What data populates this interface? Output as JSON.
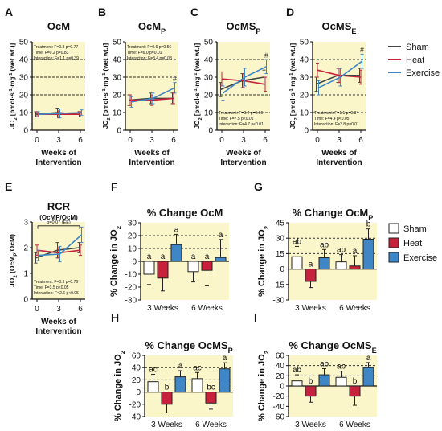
{
  "colors": {
    "plot_bg": "#fbf6c9",
    "sham": "#444444",
    "heat": "#c8213c",
    "exercise": "#3f86c6",
    "sham_fill": "#ffffff"
  },
  "legend_top": [
    "Sham",
    "Heat",
    "Exercise"
  ],
  "legend_bottom": [
    "Sham",
    "Heat",
    "Exercise"
  ],
  "chart_data": [
    {
      "panel": "A",
      "type": "line",
      "title": "OcM",
      "title_sub": "",
      "ylabel_parts": [
        "JO",
        "2",
        " [pmol·s",
        "-1",
        "·mg",
        "-1",
        " (wet wt.)]"
      ],
      "xlabel": "Weeks of Intervention",
      "xlabel_lines": [
        "Weeks of",
        "Intervention"
      ],
      "x": [
        0,
        3,
        6
      ],
      "xticks": [
        "0",
        "3",
        "6"
      ],
      "ylim": [
        0,
        50
      ],
      "yticks": [
        0,
        10,
        20,
        30,
        40,
        50
      ],
      "dashed_grid": [
        20,
        30,
        40
      ],
      "series": [
        {
          "name": "Sham",
          "values": [
            9,
            10,
            9
          ],
          "err": [
            1.5,
            2.5,
            1.5
          ]
        },
        {
          "name": "Heat",
          "values": [
            9,
            9,
            9
          ],
          "err": [
            1.5,
            2,
            1.5
          ]
        },
        {
          "name": "Exercise",
          "values": [
            9,
            9.5,
            10
          ],
          "err": [
            1.5,
            2.5,
            1.5
          ]
        }
      ],
      "stats": [
        "Treatment:  F=0.3   p=0.77",
        "Time:          F=0.2   p=0.83",
        "Interaction: F=1.1   p=0.39"
      ],
      "stats_pos": "top",
      "annotations": []
    },
    {
      "panel": "B",
      "type": "line",
      "title": "OcM",
      "title_sub": "P",
      "ylabel_parts": [
        "JO",
        "2",
        " [pmol·s",
        "-1",
        "·mg",
        "-1",
        " (wet wt.)]"
      ],
      "xlabel": "Weeks of Intervention",
      "xlabel_lines": [
        "Weeks of",
        "Intervention"
      ],
      "x": [
        0,
        3,
        6
      ],
      "xticks": [
        "0",
        "3",
        "6"
      ],
      "ylim": [
        0,
        50
      ],
      "yticks": [
        0,
        10,
        20,
        30,
        40,
        50
      ],
      "dashed_grid": [
        30,
        40
      ],
      "series": [
        {
          "name": "Sham",
          "values": [
            17,
            18,
            18
          ],
          "err": [
            3,
            3,
            3
          ]
        },
        {
          "name": "Heat",
          "values": [
            17,
            17,
            18
          ],
          "err": [
            3,
            3,
            3
          ]
        },
        {
          "name": "Exercise",
          "values": [
            16,
            18,
            24
          ],
          "err": [
            3,
            3,
            3
          ]
        }
      ],
      "stats": [
        "Treatment:  F=0.6   p=0.56",
        "Time:          F=6.0   p=0.01",
        "Interaction: F=3.4   p=0.03"
      ],
      "stats_pos": "top",
      "annotations": [
        {
          "text": "#",
          "series": "Exercise",
          "x": 6,
          "y": 28
        }
      ]
    },
    {
      "panel": "C",
      "type": "line",
      "title": "OcMS",
      "title_sub": "P",
      "ylabel_parts": [
        "JO",
        "2",
        " [pmol·s",
        "-1",
        "·mg",
        "-1",
        " (wet wt.)]"
      ],
      "xlabel": "Weeks of Intervention",
      "xlabel_lines": [
        "Weeks of",
        "Intervention"
      ],
      "x": [
        0,
        3,
        6
      ],
      "xticks": [
        "0",
        "3",
        "6"
      ],
      "ylim": [
        0,
        50
      ],
      "yticks": [
        0,
        10,
        20,
        30,
        40,
        50
      ],
      "dashed_grid": [
        10,
        20,
        40
      ],
      "series": [
        {
          "name": "Sham",
          "values": [
            23,
            28,
            30
          ],
          "err": [
            4,
            4,
            4
          ]
        },
        {
          "name": "Heat",
          "values": [
            29,
            28,
            26
          ],
          "err": [
            4,
            4,
            4
          ]
        },
        {
          "name": "Exercise",
          "values": [
            21,
            30,
            36
          ],
          "err": [
            4,
            5,
            4
          ]
        }
      ],
      "stats": [
        "Treatment:  F=0.4   p=0.66",
        "Time:          F=7.5   p<0.01",
        "Interaction: F=4.7   p<0.01"
      ],
      "stats_pos": "bottom",
      "annotations": [
        {
          "text": "#",
          "series": "Exercise",
          "x": 6,
          "y": 41
        }
      ]
    },
    {
      "panel": "D",
      "type": "line",
      "title": "OcMS",
      "title_sub": "E",
      "ylabel_parts": [
        "JO",
        "2",
        " [pmol·s",
        "-1",
        "·mg",
        "-1",
        " (wet wt.)]"
      ],
      "xlabel": "Weeks of Intervention",
      "xlabel_lines": [
        "Weeks of",
        "Intervention"
      ],
      "x": [
        0,
        3,
        6
      ],
      "xticks": [
        "0",
        "3",
        "6"
      ],
      "ylim": [
        0,
        50
      ],
      "yticks": [
        0,
        10,
        20,
        30,
        40,
        50
      ],
      "dashed_grid": [
        10,
        20,
        40
      ],
      "series": [
        {
          "name": "Sham",
          "values": [
            26,
            31,
            31
          ],
          "err": [
            4,
            4,
            4
          ]
        },
        {
          "name": "Heat",
          "values": [
            34,
            31,
            30
          ],
          "err": [
            4,
            4,
            4
          ]
        },
        {
          "name": "Exercise",
          "values": [
            24,
            30,
            39
          ],
          "err": [
            4,
            5,
            4
          ]
        }
      ],
      "stats": [
        "Treatment:  F=1.1   p=0.34",
        "Time:          F=4.4   p<0.05",
        "Interaction: F=3.8   p=0.01"
      ],
      "stats_pos": "bottom",
      "annotations": [
        {
          "text": "#",
          "series": "Exercise",
          "x": 6,
          "y": 44
        }
      ]
    },
    {
      "panel": "E",
      "type": "line",
      "title": "RCR",
      "title_sub": "",
      "subtitle": "(OcMP/OcM)",
      "ylabel_parts": [
        "JO",
        "2",
        " (OcM",
        "P",
        "/OcM)"
      ],
      "xlabel": "Weeks of Intervention",
      "xlabel_lines": [
        "Weeks of",
        "Intervention"
      ],
      "x": [
        0,
        3,
        6
      ],
      "xticks": [
        "0",
        "3",
        "6"
      ],
      "ylim": [
        0,
        3
      ],
      "yticks": [
        0,
        1,
        2,
        3
      ],
      "dashed_grid": [],
      "series": [
        {
          "name": "Sham",
          "values": [
            1.6,
            1.9,
            2.0
          ],
          "err": [
            0.2,
            0.3,
            0.2
          ]
        },
        {
          "name": "Heat",
          "values": [
            1.9,
            1.8,
            1.9
          ],
          "err": [
            0.2,
            0.2,
            0.2
          ]
        },
        {
          "name": "Exercise",
          "values": [
            1.7,
            1.75,
            2.5
          ],
          "err": [
            0.2,
            0.3,
            0.3
          ]
        }
      ],
      "stats": [
        "Treatment:  F=0.3    p=0.76",
        "Time:          F=3.5    p<0.05",
        "Interaction: F=2.6    p<0.05"
      ],
      "stats_pos": "bottom",
      "annotations": [
        {
          "text": "p=0.07 (EE)",
          "bracket": true,
          "x": 3,
          "y": 2.85
        }
      ]
    },
    {
      "panel": "F",
      "type": "bar",
      "title": "% Change OcM",
      "title_sub": "",
      "ylabel_parts": [
        "% Change in JO",
        "2"
      ],
      "categories": [
        "3 Weeks",
        "6 Weeks"
      ],
      "ylim": [
        -30,
        30
      ],
      "yticks": [
        -30,
        -20,
        -10,
        0,
        10,
        20,
        30
      ],
      "dashed_grid": [
        10,
        20
      ],
      "series": [
        {
          "name": "Sham",
          "values": [
            -10,
            -8
          ],
          "err": [
            8,
            8
          ],
          "letters": [
            "a",
            "a"
          ]
        },
        {
          "name": "Heat",
          "values": [
            -13,
            -7
          ],
          "err": [
            10,
            12
          ],
          "letters": [
            "a",
            "a"
          ]
        },
        {
          "name": "Exercise",
          "values": [
            13,
            3
          ],
          "err": [
            8,
            14
          ],
          "letters": [
            "a",
            "a"
          ]
        }
      ]
    },
    {
      "panel": "G",
      "type": "bar",
      "title": "% Change OcM",
      "title_sub": "P",
      "ylabel_parts": [
        "% Change in JO",
        "2"
      ],
      "categories": [
        "3 Weeks",
        "6 Weeks"
      ],
      "ylim": [
        -30,
        45
      ],
      "yticks": [
        -30,
        -15,
        0,
        15,
        30,
        45
      ],
      "dashed_grid": [
        15,
        30
      ],
      "series": [
        {
          "name": "Sham",
          "values": [
            12,
            7
          ],
          "err": [
            10,
            7
          ],
          "letters": [
            "ab",
            "ab"
          ]
        },
        {
          "name": "Heat",
          "values": [
            -12,
            3
          ],
          "err": [
            6,
            10
          ],
          "letters": [
            "a",
            "a"
          ]
        },
        {
          "name": "Exercise",
          "values": [
            11,
            29
          ],
          "err": [
            8,
            10
          ],
          "letters": [
            "ab",
            "b"
          ]
        }
      ]
    },
    {
      "panel": "H",
      "type": "bar",
      "title": "% Change OcMS",
      "title_sub": "P",
      "ylabel_parts": [
        "% Change in JO",
        "2"
      ],
      "categories": [
        "3 Weeks",
        "6 Weeks"
      ],
      "ylim": [
        -40,
        60
      ],
      "yticks": [
        -40,
        -20,
        0,
        20,
        40,
        60
      ],
      "dashed_grid": [
        20,
        40
      ],
      "series": [
        {
          "name": "Sham",
          "values": [
            17,
            22
          ],
          "err": [
            12,
            10
          ],
          "letters": [
            "ac",
            "ac"
          ]
        },
        {
          "name": "Heat",
          "values": [
            -20,
            -18
          ],
          "err": [
            14,
            10
          ],
          "letters": [
            "b",
            "bc"
          ]
        },
        {
          "name": "Exercise",
          "values": [
            25,
            38
          ],
          "err": [
            10,
            10
          ],
          "letters": [
            "a",
            "a"
          ]
        }
      ]
    },
    {
      "panel": "I",
      "type": "bar",
      "title": "% Change OcMS",
      "title_sub": "E",
      "ylabel_parts": [
        "% Change in JO",
        "2"
      ],
      "categories": [
        "3 Weeks",
        "6 Weeks"
      ],
      "ylim": [
        -60,
        60
      ],
      "yticks": [
        -60,
        -40,
        -20,
        0,
        20,
        40,
        60
      ],
      "dashed_grid": [
        20,
        40
      ],
      "series": [
        {
          "name": "Sham",
          "values": [
            10,
            17
          ],
          "err": [
            12,
            12
          ],
          "letters": [
            "ab",
            "ab"
          ]
        },
        {
          "name": "Heat",
          "values": [
            -20,
            -20
          ],
          "err": [
            12,
            18
          ],
          "letters": [
            "b",
            "b"
          ]
        },
        {
          "name": "Exercise",
          "values": [
            22,
            36
          ],
          "err": [
            12,
            10
          ],
          "letters": [
            "ab",
            "a"
          ]
        }
      ]
    }
  ]
}
